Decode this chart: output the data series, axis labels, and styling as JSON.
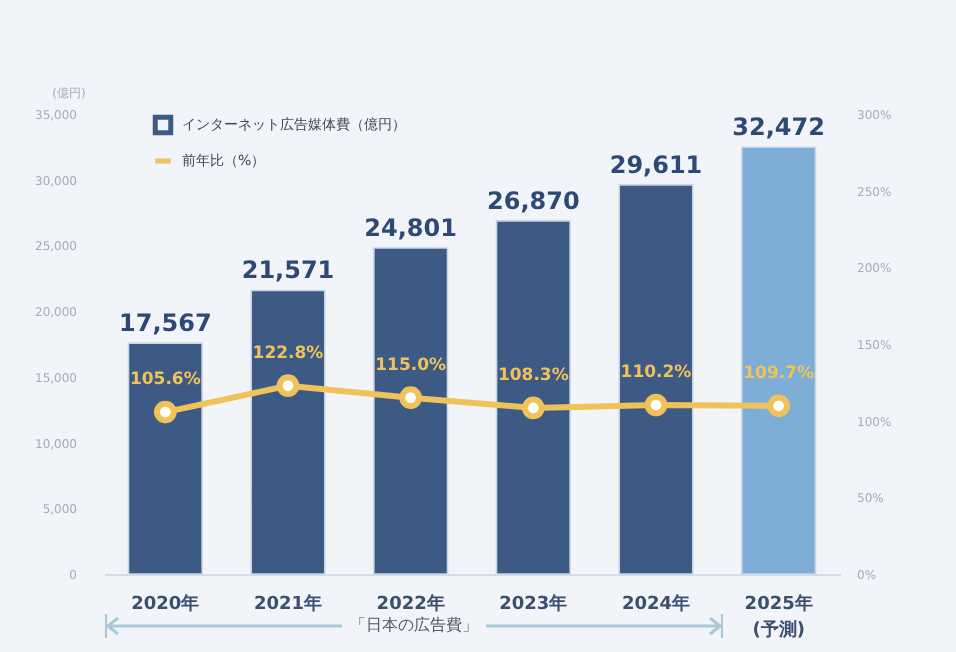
{
  "chart_data": {
    "type": "bar",
    "categories": [
      "2020年",
      "2021年",
      "2022年",
      "2023年",
      "2024年",
      "2025年\n(予測)"
    ],
    "ylabel": "(億円)",
    "series": [
      {
        "name": "インターネット広告媒体費（億円）",
        "colors": [
          "#3d5a84",
          "#3d5a84",
          "#3d5a84",
          "#3d5a84",
          "#3d5a84",
          "#7eaed6"
        ],
        "values": [
          17567,
          21571,
          24801,
          26870,
          29611,
          32472
        ],
        "value_labels": [
          "17,567",
          "21,571",
          "24,801",
          "26,870",
          "29,611",
          "32,472"
        ]
      },
      {
        "name": "前年比（%）",
        "type": "line",
        "axis": "y2",
        "color": "#f0c35a",
        "marker": "circle",
        "values": [
          105.6,
          122.8,
          115.0,
          108.3,
          110.2,
          109.7
        ],
        "value_labels": [
          "105.6%",
          "122.8%",
          "115.0%",
          "108.3%",
          "110.2%",
          "109.7%"
        ]
      }
    ],
    "ylim": [
      0,
      35000
    ],
    "yticks": [
      0,
      {
        "value": 5000,
        "label": "5,000"
      },
      {
        "value": 10000,
        "label": "10,000"
      },
      {
        "value": 15000,
        "label": "15,000"
      },
      {
        "value": 20000,
        "label": "20,000"
      },
      {
        "value": 25000,
        "label": "25,000"
      },
      {
        "value": 30000,
        "label": "30,000"
      },
      {
        "value": 35000,
        "label": "35,000"
      }
    ],
    "y2lim": [
      0,
      300
    ],
    "y2ticks": [
      {
        "value": 0,
        "label": "0%"
      },
      {
        "value": 50,
        "label": "50%"
      },
      {
        "value": 100,
        "label": "100%"
      },
      {
        "value": 150,
        "label": "150%"
      },
      {
        "value": 200,
        "label": "200%"
      },
      {
        "value": 250,
        "label": "250%"
      },
      {
        "value": 300,
        "label": "300%"
      }
    ],
    "legend": "top left",
    "annotations": [
      "「日本の広告費」"
    ]
  }
}
